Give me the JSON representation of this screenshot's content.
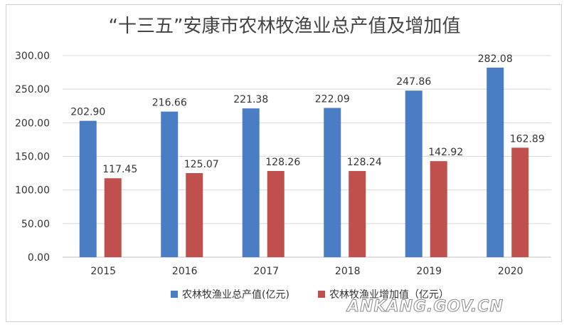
{
  "chart_data": {
    "type": "bar",
    "title": "“十三五”安康市农林牧渔业总产值及增加值",
    "categories": [
      "2015",
      "2016",
      "2017",
      "2018",
      "2019",
      "2020"
    ],
    "series": [
      {
        "name": "农林牧渔业总产值(亿元)",
        "color": "#4a7dc4",
        "values": [
          202.9,
          216.66,
          221.38,
          222.09,
          247.86,
          282.08
        ],
        "labels": [
          "202.90",
          "216.66",
          "221.38",
          "222.09",
          "247.86",
          "282.08"
        ]
      },
      {
        "name": "农林牧渔业增加值（亿元）",
        "color": "#c0504d",
        "values": [
          117.45,
          125.07,
          128.26,
          128.24,
          142.92,
          162.89
        ],
        "labels": [
          "117.45",
          "125.07",
          "128.26",
          "128.24",
          "142.92",
          "162.89"
        ]
      }
    ],
    "ylim": [
      0,
      300
    ],
    "yticks": [
      "0.00",
      "50.00",
      "100.00",
      "150.00",
      "200.00",
      "250.00",
      "300.00"
    ],
    "ytick_values": [
      0,
      50,
      100,
      150,
      200,
      250,
      300
    ],
    "grid": true,
    "legend_position": "bottom"
  },
  "watermark": "ANKANG.GOV.CN"
}
